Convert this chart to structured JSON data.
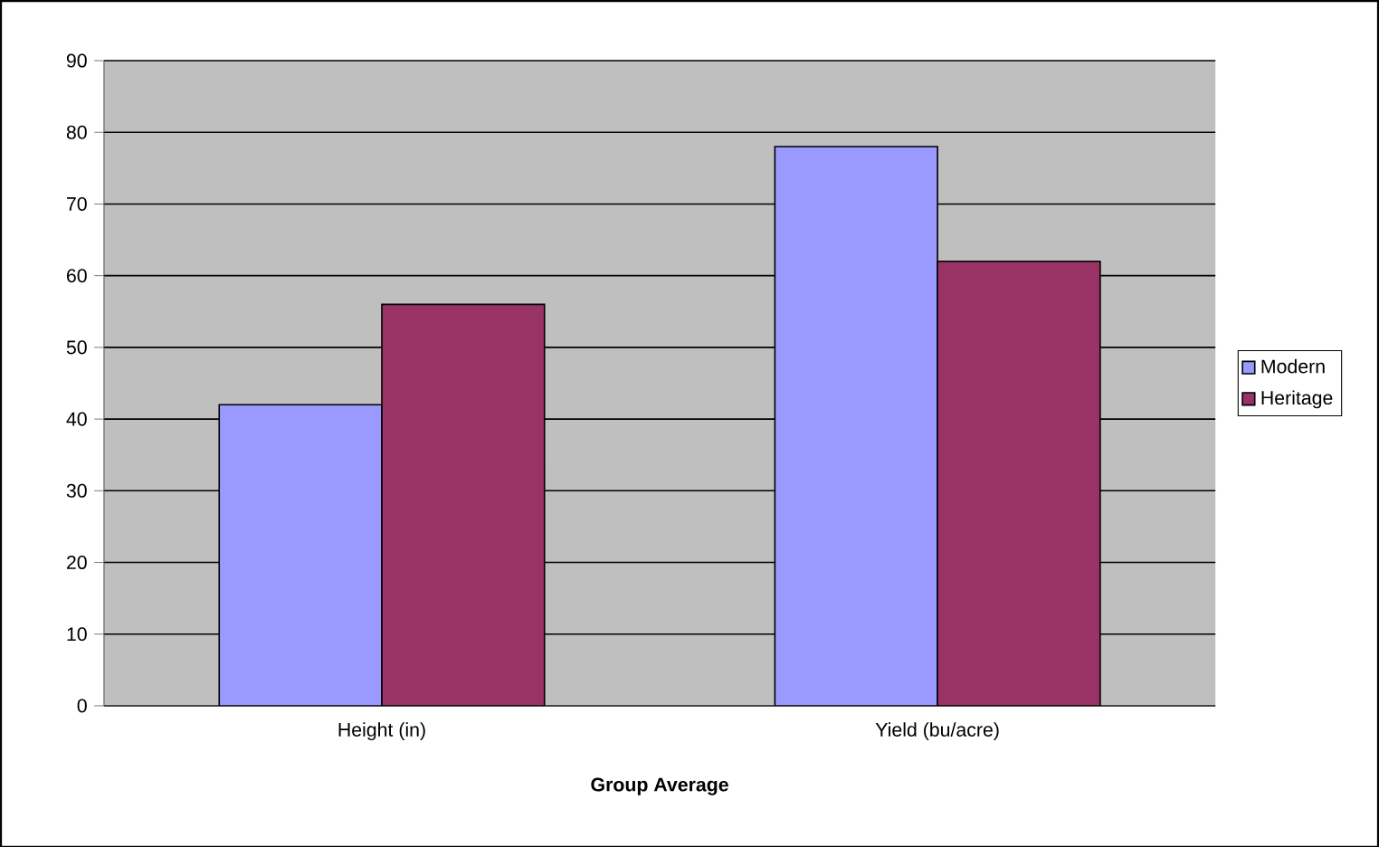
{
  "chart_data": {
    "type": "bar",
    "xlabel": "Group Average",
    "categories": [
      "Height (in)",
      "Yield (bu/acre)"
    ],
    "series": [
      {
        "name": "Modern",
        "color": "#9999ff",
        "values": [
          42,
          78
        ]
      },
      {
        "name": "Heritage",
        "color": "#993366",
        "values": [
          56,
          62
        ]
      }
    ],
    "ylim": [
      0,
      90
    ],
    "yticks": [
      0,
      10,
      20,
      30,
      40,
      50,
      60,
      70,
      80,
      90
    ],
    "grid": "y",
    "legend": "right"
  }
}
